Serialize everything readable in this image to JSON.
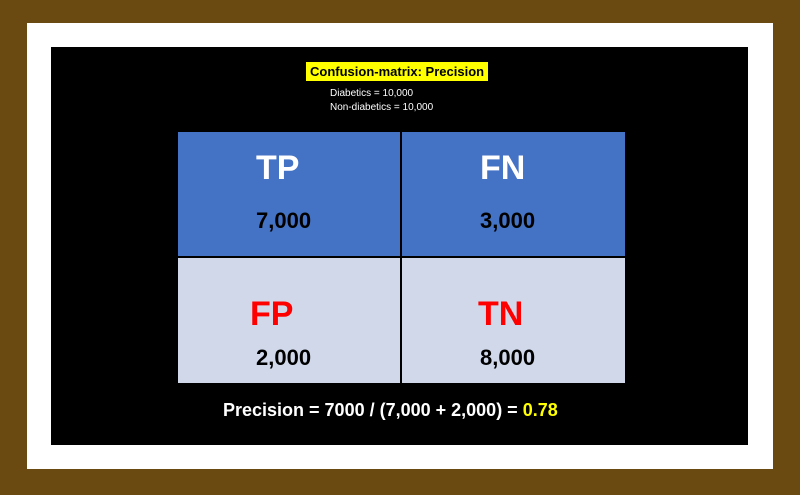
{
  "title": "Confusion-matrix: Precision",
  "counts": {
    "diabetics": "Diabetics = 10,000",
    "non_diabetics": "Non-diabetics = 10,000"
  },
  "matrix": {
    "tp": {
      "label": "TP",
      "value": "7,000"
    },
    "fn": {
      "label": "FN",
      "value": "3,000"
    },
    "fp": {
      "label": "FP",
      "value": "2,000"
    },
    "tn": {
      "label": "TN",
      "value": "8,000"
    }
  },
  "formula": {
    "text": "Precision = 7000 / (7,000 + 2,000) = ",
    "result": "0.78"
  },
  "colors": {
    "background": "#6b4a12",
    "slide": "#000000",
    "title_highlight": "#ffff00",
    "top_cells": "#4472c4",
    "bottom_cells": "#d0d8ea",
    "negative_label": "#ff0000",
    "result": "#ffff00"
  }
}
